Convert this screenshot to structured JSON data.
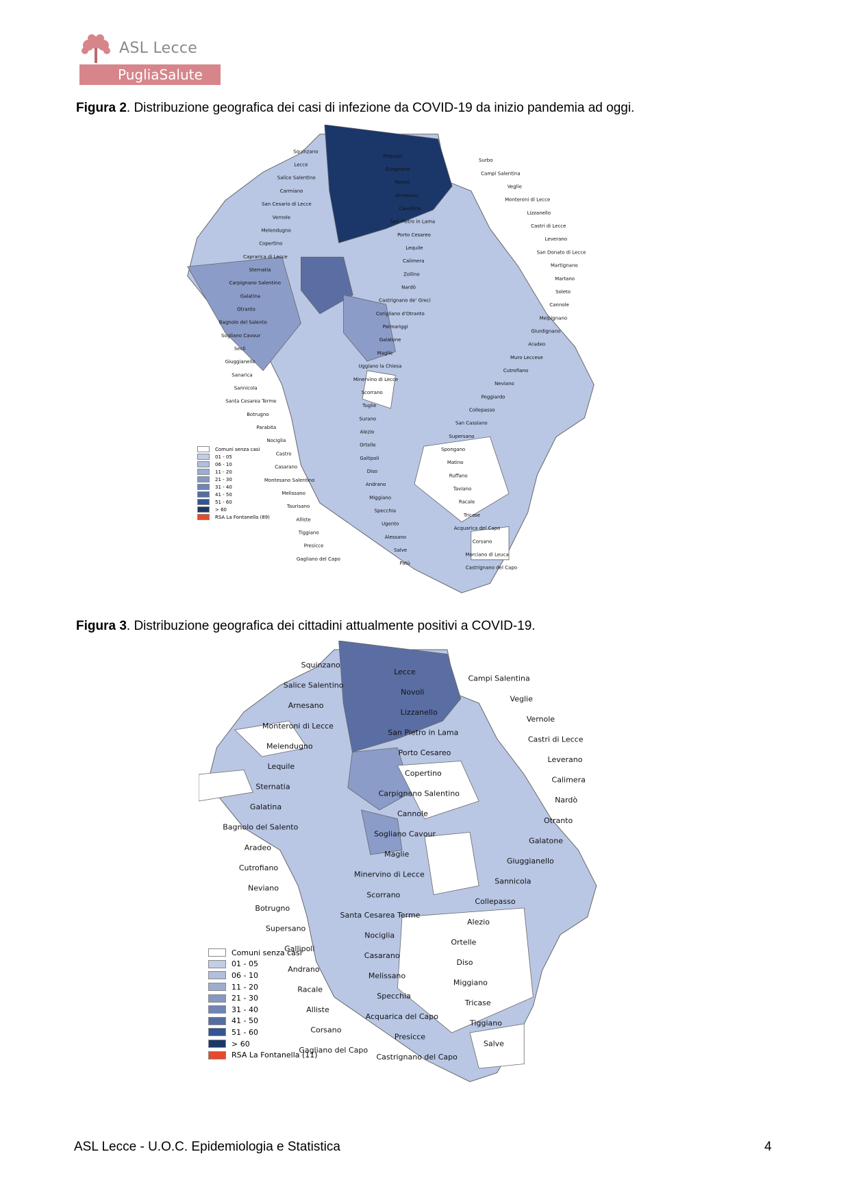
{
  "header": {
    "logo_line1": "ASL Lecce",
    "logo_line2": "PugliaSalute",
    "brand_color": "#d6868b"
  },
  "figure2": {
    "label": "Figura 2",
    "caption": ". Distribuzione  geografica dei  casi di infezione  da  COVID-19 da inizio pandemia ad oggi.",
    "places": [
      "Squinzano",
      "Trepuzzi",
      "Surbo",
      "Lecce",
      "Guagnano",
      "Campi Salentina",
      "Salice Salentino",
      "Novoli",
      "Veglie",
      "Carmiano",
      "Arnesano",
      "Monteroni di Lecce",
      "San Cesario di Lecce",
      "Cavallino",
      "Lizzanello",
      "Vernole",
      "San Pietro in Lama",
      "Castri di Lecce",
      "Melendugno",
      "Porto Cesareo",
      "Leverano",
      "Copertino",
      "Lequile",
      "San Donato di Lecce",
      "Caprarica di Lecce",
      "Calimera",
      "Martignano",
      "Sternatia",
      "Zollino",
      "Martano",
      "Carpignano Salentino",
      "Nardò",
      "Soleto",
      "Galatina",
      "Castrignano de' Greci",
      "Cannole",
      "Otranto",
      "Corigliano d'Otranto",
      "Melpignano",
      "Bagnolo del Salento",
      "Palmariggi",
      "Giurdignano",
      "Sogliano Cavour",
      "Galatone",
      "Aradeo",
      "Seclì",
      "Maglie",
      "Muro Leccese",
      "Giuggianello",
      "Uggiano la Chiesa",
      "Cutrofiano",
      "Sanarica",
      "Minervino di Lecce",
      "Neviano",
      "Sannicola",
      "Scorrano",
      "Poggiardo",
      "Santa Cesarea Terme",
      "Tuglie",
      "Collepasso",
      "Botrugno",
      "Surano",
      "San Cassiano",
      "Parabita",
      "Alezio",
      "Supersano",
      "Nociglia",
      "Ortelle",
      "Spongano",
      "Castro",
      "Gallipoli",
      "Matino",
      "Casarano",
      "Diso",
      "Ruffano",
      "Montesano Salentino",
      "Andrano",
      "Taviano",
      "Melissano",
      "Miggiano",
      "Racale",
      "Taurisano",
      "Specchia",
      "Tricase",
      "Alliste",
      "Ugento",
      "Acquarica del Capo",
      "Tiggiano",
      "Alessano",
      "Corsano",
      "Presicce",
      "Salve",
      "Morciano di Leuca",
      "Gagliano del Capo",
      "Patù",
      "Castrignano del Capo"
    ],
    "legend": [
      "Comuni senza casi",
      "01 - 05",
      "06 - 10",
      "11 - 20",
      "21 - 30",
      "31 - 40",
      "41 - 50",
      "51 - 60",
      "> 60",
      "RSA La Fontanella  (89)"
    ]
  },
  "figure3": {
    "label": "Figura 3",
    "caption": ". Distribuzione  geografica dei cittadini attualmente positivi a COVID-19.",
    "places": [
      "Squinzano",
      "Lecce",
      "Campi Salentina",
      "Salice Salentino",
      "Novoli",
      "Veglie",
      "Arnesano",
      "Lizzanello",
      "Vernole",
      "Monteroni di Lecce",
      "San Pietro in Lama",
      "Castri di Lecce",
      "Melendugno",
      "Porto Cesareo",
      "Leverano",
      "Lequile",
      "Copertino",
      "Calimera",
      "Sternatia",
      "Carpignano Salentino",
      "Nardò",
      "Galatina",
      "Cannole",
      "Otranto",
      "Bagnolo del Salento",
      "Sogliano Cavour",
      "Galatone",
      "Aradeo",
      "Maglie",
      "Giuggianello",
      "Cutrofiano",
      "Minervino di Lecce",
      "Sannicola",
      "Neviano",
      "Scorrano",
      "Collepasso",
      "Botrugno",
      "Santa Cesarea Terme",
      "Alezio",
      "Supersano",
      "Nociglia",
      "Ortelle",
      "Gallipoli",
      "Casarano",
      "Diso",
      "Andrano",
      "Melissano",
      "Miggiano",
      "Racale",
      "Specchia",
      "Tricase",
      "Alliste",
      "Acquarica del Capo",
      "Tiggiano",
      "Corsano",
      "Presicce",
      "Salve",
      "Gagliano del Capo",
      "Castrignano del Capo"
    ],
    "legend": [
      "Comuni senza casi",
      "01 - 05",
      "06 - 10",
      "11 - 20",
      "21 - 30",
      "31 - 40",
      "41 - 50",
      "51 - 60",
      "> 60",
      "RSA La Fontanella (11)"
    ]
  },
  "legend_colors": [
    "#ffffff",
    "#c2cde6",
    "#b1bedc",
    "#9dadd2",
    "#8698c4",
    "#7084b6",
    "#546ea3",
    "#325594",
    "#1b3769",
    "#e8492a"
  ],
  "map_colors": {
    "light": "#b9c7e5",
    "mid": "#8c9cc9",
    "dark": "#5a6ea3",
    "darkest": "#1b3769",
    "border": "#666666"
  },
  "footer": {
    "left": "ASL Lecce - U.O.C. Epidemiologia e Statistica",
    "page": "4"
  }
}
